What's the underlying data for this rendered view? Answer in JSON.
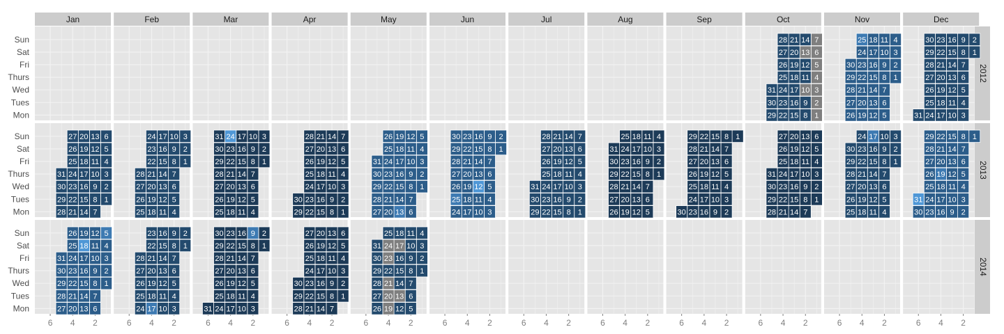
{
  "chart_data": {
    "type": "heatmap",
    "title": "",
    "xlabel": "",
    "ylabel": "",
    "months": [
      "Jan",
      "Feb",
      "Mar",
      "Apr",
      "May",
      "Jun",
      "Jul",
      "Aug",
      "Sep",
      "Oct",
      "Nov",
      "Dec"
    ],
    "years": [
      "2012",
      "2013",
      "2014"
    ],
    "weekdays": [
      "Mon",
      "Tues",
      "Wed",
      "Thurs",
      "Fri",
      "Sat",
      "Sun"
    ],
    "x_ticks": [
      "6",
      "4",
      "2"
    ],
    "x_note": "week of month, reversed axis",
    "colors": {
      "deep": "#1c3a57",
      "dark": "#234a6d",
      "mid": "#2c5d8a",
      "light": "#3d7ab2",
      "bright": "#4f97d6",
      "missing": "#7f7f7f"
    },
    "color_groups": {
      "2013-Mar": "deep",
      "2013-Apr": "deep",
      "2013-Aug": "deep",
      "2013-Sep": "deep",
      "2013-Oct": "deep",
      "2014-Mar": "deep",
      "2014-Apr": "deep",
      "2012-Oct": "dark",
      "2012-Dec": "dark",
      "2013-Jan": "dark",
      "2013-Feb": "dark",
      "2013-Jul": "dark",
      "2013-Nov": "dark",
      "2014-Feb": "dark",
      "2014-May": "dark",
      "2012-Nov": "mid",
      "2013-May": "mid",
      "2013-Jun": "mid",
      "2013-Dec": "mid",
      "2014-Jan": "mid"
    },
    "special_cells": {
      "missing": [
        "2012-10-01",
        "2012-10-02",
        "2012-10-03",
        "2012-10-04",
        "2012-10-05",
        "2012-10-06",
        "2012-10-07",
        "2012-10-13",
        "2012-10-10",
        "2014-05-24",
        "2014-05-23",
        "2014-05-17",
        "2014-05-20",
        "2014-05-13",
        "2014-05-19",
        "2014-05-21"
      ],
      "light": [
        "2012-11-25",
        "2013-03-24",
        "2013-06-25",
        "2013-05-13",
        "2013-11-17",
        "2013-12-31",
        "2013-12-19",
        "2014-03-09",
        "2014-01-05",
        "2014-01-18",
        "2014-02-17"
      ],
      "bright": [
        "2013-03-24",
        "2013-06-12",
        "2013-12-31",
        "2014-01-18"
      ]
    },
    "date_range": {
      "start": "2012-10-01",
      "end": "2014-05-31"
    },
    "panels_with_data": [
      "2012-Oct",
      "2012-Nov",
      "2012-Dec",
      "2013-Jan",
      "2013-Feb",
      "2013-Mar",
      "2013-Apr",
      "2013-May",
      "2013-Jun",
      "2013-Jul",
      "2013-Aug",
      "2013-Sep",
      "2013-Oct",
      "2013-Nov",
      "2013-Dec",
      "2014-Jan",
      "2014-Feb",
      "2014-Mar",
      "2014-Apr",
      "2014-May"
    ]
  }
}
